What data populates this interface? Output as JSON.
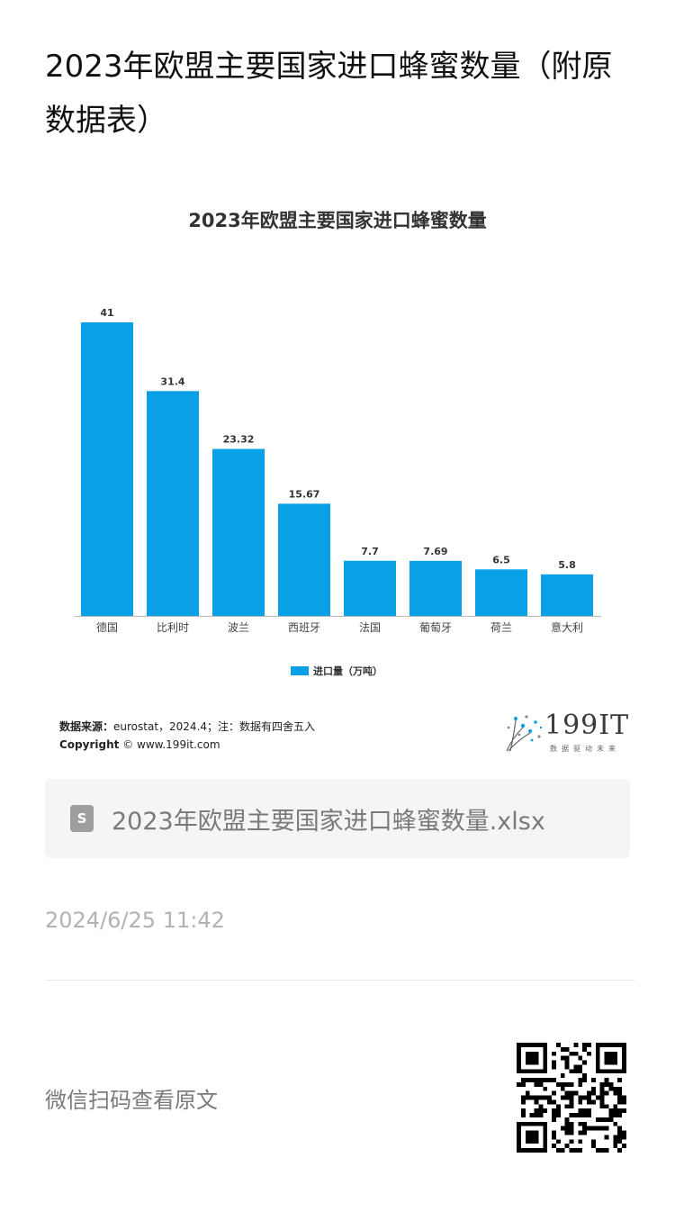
{
  "article": {
    "title": "2023年欧盟主要国家进口蜂蜜数量（附原数据表）",
    "date": "2024/6/25 11:42",
    "qr_prompt": "微信扫码查看原文"
  },
  "attachment": {
    "file_name": "2023年欧盟主要国家进口蜂蜜数量.xlsx",
    "icon": "spreadsheet-file-icon",
    "icon_letter": "S"
  },
  "chart_data": {
    "type": "bar",
    "title": "2023年欧盟主要国家进口蜂蜜数量",
    "categories": [
      "德国",
      "比利时",
      "波兰",
      "西班牙",
      "法国",
      "葡萄牙",
      "荷兰",
      "意大利"
    ],
    "series": [
      {
        "name": "进口量（万吨）",
        "values": [
          41,
          31.4,
          23.32,
          15.67,
          7.7,
          7.69,
          6.5,
          5.8
        ],
        "labels": [
          "41",
          "31.4",
          "23.32",
          "15.67",
          "7.7",
          "7.69",
          "6.5",
          "5.8"
        ]
      }
    ],
    "ylim": [
      0,
      41
    ],
    "grid": false,
    "legend_position": "bottom",
    "bar_color": "#0aa0e6"
  },
  "source": {
    "source_label": "数据来源：",
    "source_value": "eurostat，2024.4；注：数据有四舍五入",
    "copyright_label": "Copyright",
    "copyright_value": "© www.199it.com"
  },
  "brand": {
    "name": "199IT",
    "tagline": "数据驱动未来"
  }
}
